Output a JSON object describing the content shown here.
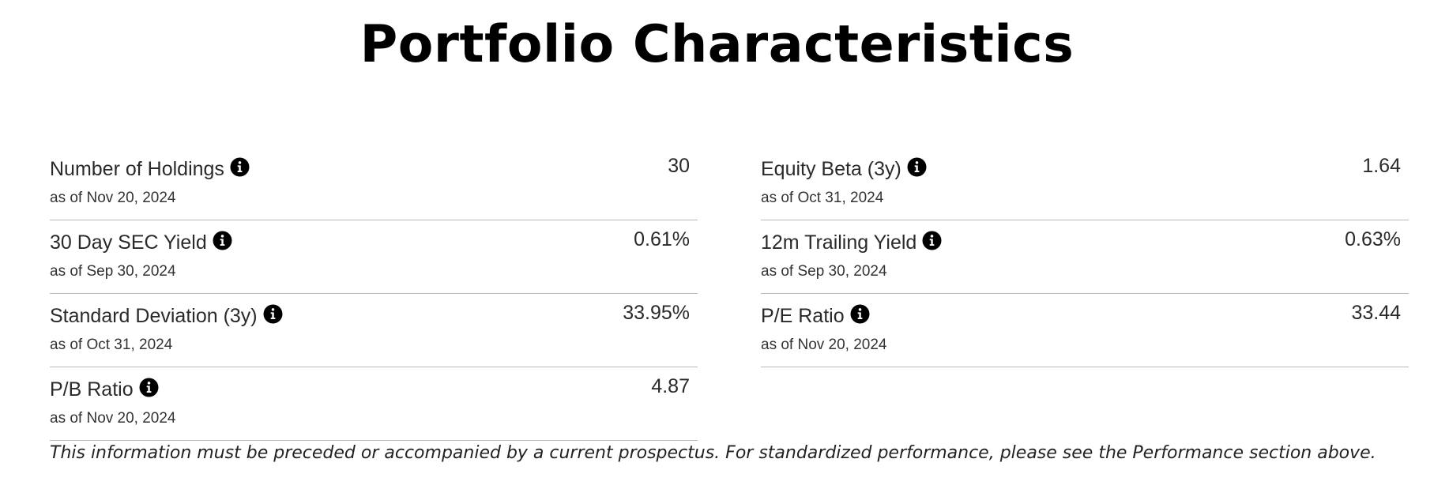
{
  "page": {
    "title": "Portfolio Characteristics"
  },
  "left_column": {
    "rows": [
      {
        "label": "Number of Holdings",
        "date": "as of Nov 20, 2024",
        "value": "30",
        "icon": "info-icon"
      },
      {
        "label": "30 Day SEC Yield",
        "date": "as of Sep 30, 2024",
        "value": "0.61%",
        "icon": "info-icon"
      },
      {
        "label": "Standard Deviation (3y)",
        "date": "as of Oct 31, 2024",
        "value": "33.95%",
        "icon": "info-icon"
      },
      {
        "label": "P/B Ratio",
        "date": "as of Nov 20, 2024",
        "value": "4.87",
        "icon": "info-icon"
      }
    ]
  },
  "right_column": {
    "rows": [
      {
        "label": "Equity Beta (3y)",
        "date": "as of Oct 31, 2024",
        "value": "1.64",
        "icon": "info-icon"
      },
      {
        "label": "12m Trailing Yield",
        "date": "as of Sep 30, 2024",
        "value": "0.63%",
        "icon": "info-icon"
      },
      {
        "label": "P/E Ratio",
        "date": "as of Nov 20, 2024",
        "value": "33.44",
        "icon": "info-icon"
      }
    ]
  },
  "footer": {
    "disclaimer": "This information must be preceded or accompanied by a current prospectus. For standardized performance, please see the Performance section above."
  },
  "colors": {
    "text": "#222222",
    "divider": "#b9b9b9",
    "icon": "#000000"
  }
}
